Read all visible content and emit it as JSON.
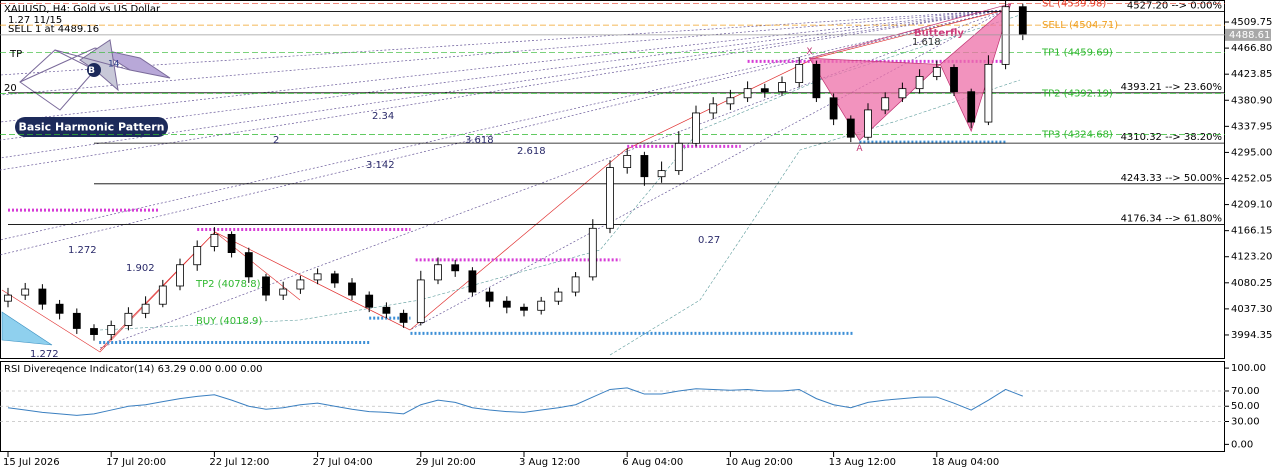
{
  "chart_data": [
    {
      "type": "candlestick",
      "title": "XAUUSD, H4:  Gold vs US Dollar",
      "subtitles": [
        "1.27 11/15",
        "SELL 1 at 4489.16"
      ],
      "open": [
        4050,
        4060,
        4070,
        4045,
        4030,
        4005,
        3995,
        4010,
        4030,
        4045,
        4075,
        4110,
        4140,
        4160,
        4130,
        4090,
        4060,
        4070,
        4085,
        4095,
        4080,
        4060,
        4040,
        4030,
        4015,
        4085,
        4110,
        4100,
        4065,
        4050,
        4040,
        4035,
        4050,
        4065,
        4090,
        4170,
        4270,
        4290,
        4255,
        4265,
        4310,
        4360,
        4375,
        4385,
        4400,
        4395,
        4410,
        4440,
        4385,
        4350,
        4320,
        4365,
        4385,
        4400,
        4420,
        4435,
        4395,
        4345,
        4440,
        4535
      ],
      "high": [
        4072,
        4080,
        4078,
        4052,
        4038,
        4012,
        4018,
        4040,
        4058,
        4085,
        4120,
        4150,
        4172,
        4165,
        4138,
        4095,
        4082,
        4092,
        4104,
        4100,
        4088,
        4066,
        4048,
        4036,
        4100,
        4122,
        4118,
        4106,
        4072,
        4058,
        4046,
        4057,
        4072,
        4098,
        4185,
        4282,
        4302,
        4296,
        4280,
        4330,
        4372,
        4386,
        4398,
        4412,
        4408,
        4420,
        4452,
        4446,
        4392,
        4356,
        4376,
        4394,
        4410,
        4432,
        4446,
        4440,
        4400,
        4455,
        4548,
        4540
      ],
      "low": [
        4040,
        4052,
        4036,
        4020,
        3996,
        3985,
        3986,
        4002,
        4022,
        4040,
        4068,
        4100,
        4132,
        4122,
        4080,
        4050,
        4052,
        4062,
        4078,
        4072,
        4052,
        4032,
        4022,
        4006,
        4010,
        4078,
        4090,
        4058,
        4040,
        4030,
        4025,
        4028,
        4044,
        4058,
        4084,
        4162,
        4260,
        4240,
        4245,
        4258,
        4305,
        4350,
        4365,
        4378,
        4385,
        4388,
        4402,
        4378,
        4340,
        4312,
        4315,
        4358,
        4378,
        4392,
        4414,
        4388,
        4335,
        4340,
        4432,
        4480
      ],
      "close": [
        4060,
        4070,
        4045,
        4030,
        4005,
        3995,
        4010,
        4030,
        4045,
        4075,
        4110,
        4140,
        4160,
        4130,
        4090,
        4060,
        4070,
        4085,
        4095,
        4080,
        4060,
        4040,
        4030,
        4015,
        4085,
        4110,
        4100,
        4065,
        4050,
        4040,
        4035,
        4050,
        4065,
        4090,
        4170,
        4270,
        4290,
        4255,
        4265,
        4310,
        4360,
        4375,
        4385,
        4400,
        4395,
        4410,
        4440,
        4385,
        4350,
        4320,
        4365,
        4385,
        4400,
        4420,
        4435,
        4395,
        4345,
        4440,
        4535,
        4490
      ],
      "up_color": "#ffffff",
      "down_color": "#000000",
      "wick_color": "#000000",
      "ylim": [
        3956.4,
        4537.8
      ],
      "yticks": [
        4509.75,
        {
          "value": 4466.8,
          "label": "4466.80"
        },
        4423.85,
        {
          "value": 4380.9,
          "label": "4380.90"
        },
        4337.95,
        {
          "value": 4295,
          "label": "4295.00"
        },
        4252.05,
        {
          "value": 4209.1,
          "label": "4209.10"
        },
        4166.15,
        {
          "value": 4123.2,
          "label": "4123.20"
        },
        4080.25,
        {
          "value": 4037.3,
          "label": "4037.30"
        },
        3994.35
      ],
      "xticks": [
        {
          "value": 0,
          "label": "15 Jul 2026"
        },
        {
          "value": 6,
          "label": "17 Jul 20:00"
        },
        {
          "value": 12,
          "label": "22 Jul 12:00"
        },
        {
          "value": 18,
          "label": "27 Jul 04:00"
        },
        {
          "value": 24,
          "label": "29 Jul 20:00"
        },
        {
          "value": 30,
          "label": "3 Aug 12:00"
        },
        {
          "value": 36,
          "label": "6 Aug 04:00"
        },
        {
          "value": 42,
          "label": "10 Aug 20:00"
        },
        {
          "value": 48,
          "label": "13 Aug 12:00"
        },
        {
          "value": 54,
          "label": "18 Aug 04:00"
        }
      ],
      "fib_levels": [
        {
          "value": 4527.2,
          "label": "4527.20 --> 0.00%",
          "start": 0
        },
        {
          "value": 4393.21,
          "label": "4393.21 --> 23.60%",
          "start": 0
        },
        {
          "value": 4310.32,
          "label": "4310.32 --> 38.20%",
          "start": 5
        },
        {
          "value": 4243.33,
          "label": "4243.33 --> 50.00%",
          "start": 5
        },
        {
          "value": 4176.34,
          "label": "4176.34 --> 61.80%",
          "start": 0
        }
      ],
      "trade_levels": [
        {
          "value": 4539.98,
          "label": "SL (4539.98)",
          "color": "#e8402a"
        },
        {
          "value": 4504.71,
          "label": "SELL (4504.71)",
          "color": "#f0a020"
        },
        {
          "value": 4459.69,
          "label": "TP1 (4459.69)",
          "color": "#2fb82f"
        },
        {
          "value": 4392.19,
          "label": "TP2 (4392.19)",
          "color": "#2fb82f"
        },
        {
          "value": 4324.68,
          "label": "TP3 (4324.68)",
          "color": "#2fb82f"
        }
      ],
      "current_price": 4488.61,
      "sr_lines": [
        {
          "value": 4445,
          "from": 43,
          "to": 58,
          "color": "#d63cd6"
        },
        {
          "value": 4305,
          "from": 36,
          "to": 42.6,
          "color": "#d63cd6"
        },
        {
          "value": 4168,
          "from": 11,
          "to": 23.4,
          "color": "#d63cd6"
        },
        {
          "value": 4118,
          "from": 23.7,
          "to": 35.6,
          "color": "#d63cd6"
        },
        {
          "value": 4200,
          "from": 0,
          "to": 8.8,
          "color": "#d63cd6"
        },
        {
          "value": 4312,
          "from": 49.5,
          "to": 58,
          "color": "#3c8fd6"
        },
        {
          "value": 3997,
          "from": 23.4,
          "to": 49.2,
          "color": "#3c8fd6"
        },
        {
          "value": 3982,
          "from": 5.3,
          "to": 21,
          "color": "#3c8fd6"
        },
        {
          "value": 4022,
          "from": 21,
          "to": 23.4,
          "color": "#3c8fd6"
        }
      ],
      "pattern": {
        "name": "Butterfly",
        "ratio": "1.618",
        "color": "#ee6fa8",
        "x": [
          46.6,
          49.5,
          54.2,
          56,
          58.3
        ],
        "y": [
          4450,
          4315,
          4440,
          4330,
          4540
        ],
        "labels": [
          "X",
          "A",
          null,
          null,
          "B"
        ]
      },
      "annotations": [
        "2.34",
        "2",
        "3.618",
        "2.618",
        "3.142",
        "1.272",
        "1.902",
        "0.27",
        "1.272",
        "TP",
        "20",
        "TP2 (4078.8)",
        "BUY (4018.9)"
      ],
      "logo": {
        "title": "Basic Harmonic Pattern",
        "badge": "B",
        "badge_number": "14"
      }
    },
    {
      "type": "line",
      "title": "RSI Divereqence Indicator(14) 63.29 0.00 0.00 0.00",
      "color": "#3a7fc0",
      "values": [
        48,
        45,
        42,
        40,
        38,
        40,
        45,
        50,
        52,
        56,
        60,
        63,
        65,
        58,
        50,
        46,
        48,
        52,
        54,
        50,
        46,
        43,
        42,
        40,
        52,
        58,
        55,
        48,
        45,
        43,
        42,
        45,
        48,
        52,
        62,
        72,
        74,
        66,
        66,
        70,
        73,
        72,
        71,
        72,
        70,
        70,
        72,
        60,
        52,
        48,
        55,
        58,
        60,
        62,
        62,
        54,
        45,
        58,
        72,
        63.29
      ],
      "ylim": [
        -10,
        108
      ],
      "yticks": [
        {
          "value": 100,
          "label": "100.00"
        },
        {
          "value": 70,
          "label": "70.00"
        },
        {
          "value": 50,
          "label": "50.00"
        },
        {
          "value": 30,
          "label": "30.00"
        },
        {
          "value": 0,
          "label": "0.00"
        }
      ]
    }
  ]
}
